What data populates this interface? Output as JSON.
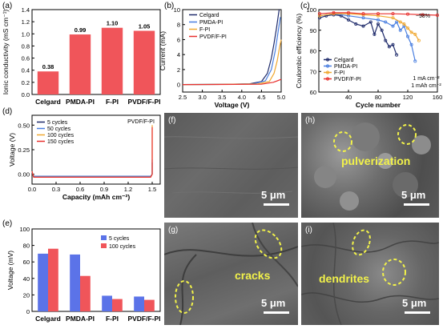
{
  "panels": {
    "a": "(a)",
    "b": "(b)",
    "c": "(c)",
    "d": "(d)",
    "e": "(e)",
    "f": "(f)",
    "g": "(g)",
    "h": "(h)",
    "i": "(i)"
  },
  "chart_data": [
    {
      "id": "a",
      "type": "bar",
      "categories": [
        "Celgard",
        "PMDA-PI",
        "F-PI",
        "PVDF/F-PI"
      ],
      "values": [
        0.38,
        0.99,
        1.1,
        1.05
      ],
      "value_labels": [
        "0.38",
        "0.99",
        "1.10",
        "1.05"
      ],
      "ylabel": "Ionic conductivity (mS cm⁻¹)",
      "ylim": [
        0,
        1.4
      ],
      "yticks": [
        0.0,
        0.2,
        0.4,
        0.6,
        0.8,
        1.0,
        1.2,
        1.4
      ],
      "ytick_labels": [
        "0.0",
        "0.2",
        "0.4",
        "0.6",
        "0.8",
        "1.0",
        "1.2",
        "1.4"
      ],
      "colors": {
        "bar": "#f0555a"
      }
    },
    {
      "id": "b",
      "type": "line",
      "xlabel": "Voltage (V)",
      "ylabel": "Current (mA)",
      "xlim": [
        2.5,
        5.0
      ],
      "ylim": [
        -1,
        10
      ],
      "xticks": [
        2.5,
        3.0,
        3.5,
        4.0,
        4.5,
        5.0
      ],
      "xtick_labels": [
        "2.5",
        "3.0",
        "3.5",
        "4.0",
        "4.5",
        "5.0"
      ],
      "yticks": [
        0,
        2,
        4,
        6,
        8,
        10
      ],
      "ytick_labels": [
        "0",
        "2",
        "4",
        "6",
        "8",
        "10"
      ],
      "series": [
        {
          "name": "Celgard",
          "color": "#1f2b6b",
          "x": [
            2.5,
            3.5,
            4.2,
            4.5,
            4.65,
            4.75,
            4.82,
            4.88,
            4.92,
            4.95
          ],
          "y": [
            0,
            0.02,
            0.1,
            0.4,
            1.5,
            3.5,
            5.5,
            7.5,
            9.0,
            10
          ]
        },
        {
          "name": "PMDA-PI",
          "color": "#4a7fe0",
          "x": [
            2.5,
            3.5,
            4.3,
            4.6,
            4.75,
            4.85,
            4.92,
            4.98
          ],
          "y": [
            0,
            0.02,
            0.1,
            0.5,
            2.0,
            4.5,
            7.0,
            9.0
          ]
        },
        {
          "name": "F-PI",
          "color": "#f0a830",
          "x": [
            2.5,
            3.5,
            4.4,
            4.7,
            4.82,
            4.9,
            4.96,
            5.0
          ],
          "y": [
            0,
            0.02,
            0.08,
            0.4,
            1.5,
            3.2,
            5.0,
            6.0
          ]
        },
        {
          "name": "PVDF/F-PI",
          "color": "#e8302e",
          "x": [
            2.5,
            3.5,
            4.5,
            4.8,
            4.9,
            5.0
          ],
          "y": [
            0,
            0.01,
            0.05,
            0.3,
            0.5,
            0.7
          ]
        }
      ]
    },
    {
      "id": "c",
      "type": "scatter",
      "xlabel": "Cycle number",
      "ylabel": "Coulombic efficiency (%)",
      "xlim": [
        0,
        160
      ],
      "ylim": [
        60,
        100
      ],
      "xticks": [
        40,
        80,
        120,
        160
      ],
      "xtick_labels": [
        "40",
        "80",
        "120",
        "160"
      ],
      "yticks": [
        60,
        70,
        80,
        90,
        100
      ],
      "ytick_labels": [
        "60",
        "70",
        "80",
        "90",
        "100"
      ],
      "annotations": [
        "~98%",
        "1 mA cm⁻²",
        "1 mAh cm⁻²"
      ],
      "series": [
        {
          "name": "Celgard",
          "color": "#1f2b6b",
          "x": [
            1,
            10,
            20,
            30,
            40,
            50,
            60,
            70,
            75,
            80,
            85,
            90,
            95,
            100,
            105
          ],
          "y": [
            96,
            97,
            97.5,
            97,
            95,
            93,
            92,
            94,
            88,
            93,
            90,
            85,
            82,
            83,
            78
          ]
        },
        {
          "name": "PMDA-PI",
          "color": "#4a7fe0",
          "x": [
            1,
            20,
            40,
            60,
            80,
            90,
            100,
            105,
            110,
            115,
            120,
            125,
            130
          ],
          "y": [
            97,
            98,
            97,
            96,
            95,
            94,
            92,
            94,
            90,
            92,
            87,
            83,
            75
          ]
        },
        {
          "name": "F-PI",
          "color": "#f0a830",
          "x": [
            1,
            20,
            40,
            60,
            80,
            100,
            110,
            115,
            120,
            125,
            130,
            135
          ],
          "y": [
            97,
            98,
            98,
            97.5,
            97,
            96,
            94,
            93,
            91,
            89,
            88,
            85
          ]
        },
        {
          "name": "PVDF/F-PI",
          "color": "#e8302e",
          "x": [
            1,
            20,
            40,
            60,
            80,
            100,
            120,
            140,
            160
          ],
          "y": [
            98,
            98.5,
            98.5,
            98,
            98,
            98,
            97.8,
            97.5,
            97.3
          ]
        }
      ]
    },
    {
      "id": "d",
      "type": "line",
      "xlabel": "Capacity (mAh cm⁻²)",
      "ylabel": "Voltage (V)",
      "xlim": [
        0,
        1.6
      ],
      "ylim": [
        -0.1,
        0.6
      ],
      "xticks": [
        0.0,
        0.3,
        0.6,
        0.9,
        1.2,
        1.5
      ],
      "xtick_labels": [
        "0.0",
        "0.3",
        "0.6",
        "0.9",
        "1.2",
        "1.5"
      ],
      "yticks": [
        0.0,
        0.25,
        0.5
      ],
      "ytick_labels": [
        "0.00",
        "0.25",
        "0.50"
      ],
      "annotation": "PVDF/F-PI",
      "series": [
        {
          "name": "5 cycles",
          "color": "#1f2b6b",
          "x": [
            0,
            0.02,
            1.48,
            1.5,
            1.5
          ],
          "y": [
            0.02,
            -0.02,
            -0.02,
            0.0,
            0.12
          ]
        },
        {
          "name": "50 cycles",
          "color": "#4a7fe0",
          "x": [
            0,
            0.02,
            1.48,
            1.5,
            1.5
          ],
          "y": [
            0.02,
            -0.02,
            -0.02,
            0.0,
            0.15
          ]
        },
        {
          "name": "100 cycles",
          "color": "#f0a830",
          "x": [
            0,
            0.02,
            1.48,
            1.5,
            1.5
          ],
          "y": [
            0.03,
            -0.03,
            -0.03,
            0.0,
            0.5
          ]
        },
        {
          "name": "150 cycles",
          "color": "#e8302e",
          "x": [
            0,
            0.02,
            1.48,
            1.5,
            1.5
          ],
          "y": [
            0.03,
            -0.03,
            -0.03,
            0.0,
            0.48
          ]
        }
      ]
    },
    {
      "id": "e",
      "type": "bar",
      "categories": [
        "Celgard",
        "PMDA-PI",
        "F-PI",
        "PVDF/F-PI"
      ],
      "ylabel": "Voltage (mV)",
      "ylim": [
        0,
        100
      ],
      "yticks": [
        0,
        20,
        40,
        60,
        80,
        100
      ],
      "ytick_labels": [
        "0",
        "20",
        "40",
        "60",
        "80",
        "100"
      ],
      "series": [
        {
          "name": "5 cycles",
          "color": "#5b73e8",
          "values": [
            70,
            69,
            19,
            18
          ]
        },
        {
          "name": "100 cycles",
          "color": "#f0555a",
          "values": [
            76,
            43,
            15,
            14
          ]
        }
      ]
    }
  ],
  "sem": {
    "f": {
      "scale": "5 μm"
    },
    "g": {
      "scale": "5 μm",
      "label": "cracks"
    },
    "h": {
      "scale": "5 μm",
      "label": "pulverization"
    },
    "i": {
      "scale": "5 μm",
      "label": "dendrites"
    }
  }
}
